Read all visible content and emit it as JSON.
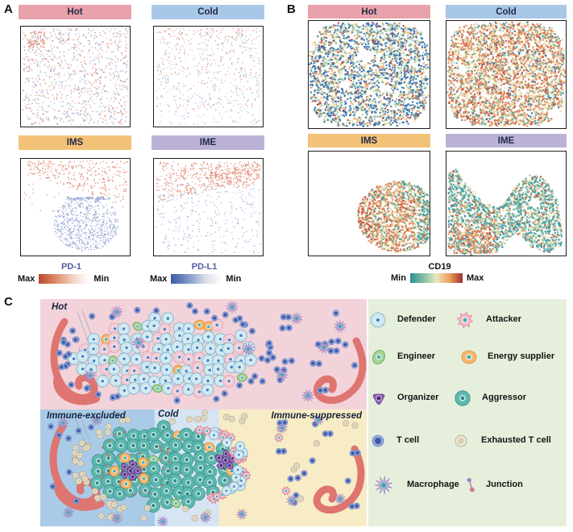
{
  "figure": {
    "panel_a_label": "A",
    "panel_b_label": "B",
    "panel_c_label": "C"
  },
  "colors": {
    "header_hot": "#e9a2ab",
    "header_cold": "#a9c7e6",
    "header_ims": "#f3c279",
    "header_ime": "#bcb2d8",
    "header_text": "#222c46",
    "pd_label_blue": "#4f5da3",
    "black_label": "#141414",
    "vessel": "#df7570",
    "junction_line": "#a8b4c8"
  },
  "panel_a": {
    "subpanels": [
      {
        "label": "Hot"
      },
      {
        "label": "Cold"
      },
      {
        "label": "IMS"
      },
      {
        "label": "IME"
      }
    ]
  },
  "panel_b": {
    "subpanels": [
      {
        "label": "Hot"
      },
      {
        "label": "Cold"
      },
      {
        "label": "IMS"
      },
      {
        "label": "IME"
      }
    ]
  },
  "colorbars": {
    "pd1": {
      "label": "PD-1",
      "left": "Max",
      "right": "Min",
      "gradient": [
        "#b94a32",
        "#dd8a66",
        "#f3d2c3",
        "#ffffff"
      ]
    },
    "pdl1": {
      "label": "PD-L1",
      "left": "Max",
      "right": "Min",
      "gradient": [
        "#3a5ea6",
        "#7d95c6",
        "#d6dce9",
        "#ffffff"
      ]
    },
    "cd19": {
      "label": "CD19",
      "left": "Min",
      "right": "Max",
      "gradient": [
        "#2d8f96",
        "#7fc0a2",
        "#e9e6bd",
        "#eca05c",
        "#a23030"
      ]
    }
  },
  "chart_data": [
    {
      "id": "a_hot",
      "panel": "A",
      "type": "scatter",
      "title": "Hot",
      "marker_colors": {
        "red_series": "PD-1",
        "blue_series": "PD-L1"
      },
      "dist": "a_hot",
      "seed": 11,
      "n_points": 950,
      "point_size": 1.4,
      "palette": {
        "red": "#dd8066",
        "blue": "#8a9cd0"
      },
      "red_fraction": 0.47,
      "pattern": "dense uniform mix of PD-1(red) and PD-L1(blue) cells over whole tissue, small red clusters near edges"
    },
    {
      "id": "a_cold",
      "panel": "A",
      "type": "scatter",
      "title": "Cold",
      "marker_colors": {
        "red_series": "PD-1",
        "blue_series": "PD-L1"
      },
      "dist": "a_cold",
      "seed": 22,
      "n_points": 680,
      "point_size": 1.4,
      "palette": {
        "red": "#dd8066",
        "blue": "#9aaad6"
      },
      "red_fraction": 0.42,
      "pattern": "sparser mix, red cells biased to upper half, faint blue everywhere"
    },
    {
      "id": "a_ims",
      "panel": "A",
      "type": "scatter",
      "title": "IMS",
      "marker_colors": {
        "red_series": "PD-1",
        "blue_series": "PD-L1"
      },
      "dist": "a_ims",
      "seed": 33,
      "n_red": 300,
      "n_blue": 700,
      "point_size": 1.4,
      "palette": {
        "red": "#dd8066",
        "blue": "#8a9cd0"
      },
      "pattern": "PD-1(red) wedge across top, dense round PD-L1(blue) blob bottom-right with sharp top edge"
    },
    {
      "id": "a_ime",
      "panel": "A",
      "type": "scatter",
      "title": "IME",
      "marker_colors": {
        "red_series": "PD-1",
        "blue_series": "PD-L1"
      },
      "dist": "a_ime",
      "seed": 44,
      "n_red": 430,
      "n_blue": 330,
      "point_size": 1.4,
      "palette": {
        "red": "#dd8066",
        "blue": "#8a9cd0"
      },
      "pattern": "dense PD-1(red) diagonal band across upper region, sparse PD-L1(blue) below"
    },
    {
      "id": "b_hot",
      "panel": "B",
      "type": "scatter",
      "title": "Hot",
      "marker": "CD19",
      "dist": "b_blob",
      "seed": 55,
      "n_points": 2600,
      "point_size": 2.1,
      "palette": [
        [
          "#2e6cb0",
          0.4
        ],
        [
          "#9cc49e",
          0.27
        ],
        [
          "#eddfb0",
          0.15
        ],
        [
          "#ea9c5e",
          0.12
        ],
        [
          "#c24438",
          0.06
        ]
      ],
      "holes": [
        [
          0.47,
          0.33,
          0.075
        ],
        [
          0.3,
          0.6,
          0.05
        ],
        [
          0.63,
          0.63,
          0.045
        ]
      ],
      "pattern": "tissue-wide dense blob, CD19 low (blue/green dominant) with scattered high spots"
    },
    {
      "id": "b_cold",
      "panel": "B",
      "type": "scatter",
      "title": "Cold",
      "marker": "CD19",
      "dist": "b_blob",
      "seed": 66,
      "n_points": 3200,
      "point_size": 2.1,
      "palette": [
        [
          "#e08457",
          0.34
        ],
        [
          "#c8503c",
          0.13
        ],
        [
          "#ead9a2",
          0.26
        ],
        [
          "#bcd4a4",
          0.12
        ],
        [
          "#4aa29a",
          0.12
        ],
        [
          "#33669f",
          0.03
        ]
      ],
      "holes": [
        [
          0.13,
          0.45,
          0.045
        ],
        [
          0.9,
          0.86,
          0.06
        ]
      ],
      "pattern": "tissue-wide dense blob, CD19 high (orange/red dominant) with cream and teal mix"
    },
    {
      "id": "b_ims",
      "panel": "B",
      "type": "scatter",
      "title": "IMS",
      "marker": "CD19",
      "dist": "b_ims",
      "seed": 77,
      "n_points": 1500,
      "point_size": 2.1,
      "colors": {
        "orange": "#e08457",
        "red": "#c04c38",
        "cream": "#e8d8a4",
        "green": "#aecfa0",
        "teal": "#3b9d9b"
      },
      "pattern": "rounded tissue lobe occupying right half; CD19 high (orange/red) core, low (teal) right rim"
    },
    {
      "id": "b_ime",
      "panel": "B",
      "type": "scatter",
      "title": "IME",
      "marker": "CD19",
      "dist": "b_ime",
      "seed": 88,
      "n_points": 2300,
      "point_size": 2.1,
      "colors": {
        "teal": "#3a9aa4",
        "green": "#8cc2a2",
        "cream": "#e6dcac",
        "orange": "#e0905a",
        "red": "#c24838"
      },
      "hole": [
        0.74,
        0.5,
        0.055
      ],
      "pattern": "wide saddle-shaped tissue spanning full width; CD19 low (teal/green) overall, high (orange/red) patch bottom-left"
    }
  ],
  "panel_c": {
    "zones": [
      {
        "name": "hot",
        "label": "Hot",
        "bg": "#f3d3da"
      },
      {
        "name": "immune-excluded",
        "label": "Immune-excluded",
        "bg": "#a9cbe7"
      },
      {
        "name": "cold",
        "label": "Cold",
        "bg": "#d7e5f3"
      },
      {
        "name": "immune-suppressed",
        "label": "Immune-suppressed",
        "bg": "#f8ecc6"
      }
    ],
    "legend": {
      "bg": "#e6efdc",
      "items": [
        {
          "name": "defender",
          "label": "Defender",
          "fill": "#cfe8f0",
          "stroke": "#7ab0c8",
          "nucleus": "#4a86c6"
        },
        {
          "name": "attacker",
          "label": "Attacker",
          "fill": "#f2bac8",
          "stroke": "#d8849c",
          "nucleus": "#3aa8b8"
        },
        {
          "name": "engineer",
          "label": "Engineer",
          "fill": "#a8d49a",
          "stroke": "#6aa85c",
          "nucleus": "#3aa8b8"
        },
        {
          "name": "energy-supplier",
          "label": "Energy supplier",
          "fill": "#f5b96a",
          "stroke": "#e0923f",
          "nucleus": "#3aa8b8"
        },
        {
          "name": "organizer",
          "label": "Organizer",
          "fill": "#8a5fb0",
          "stroke": "#6a3f90",
          "nucleus": "#4a2d78"
        },
        {
          "name": "aggressor",
          "label": "Aggressor",
          "fill": "#5fb8b0",
          "stroke": "#3d968e",
          "nucleus": "#2e8a84"
        },
        {
          "name": "t-cell",
          "label": "T cell",
          "fill": "#92a6d8",
          "stroke": "#7288c4",
          "nucleus": "#3a55a8"
        },
        {
          "name": "exhausted-t-cell",
          "label": "Exhausted T cell",
          "fill": "#ece4d0",
          "stroke": "#b0a890",
          "nucleus": "#d6ccae"
        },
        {
          "name": "macrophage",
          "label": "Macrophage",
          "fill": "#c6b5dc",
          "stroke": "#9a84c0",
          "nucleus": "#3aa8b8"
        },
        {
          "name": "junction",
          "label": "Junction",
          "fill": "#d8798c",
          "stroke": "#9187c6"
        }
      ]
    }
  }
}
